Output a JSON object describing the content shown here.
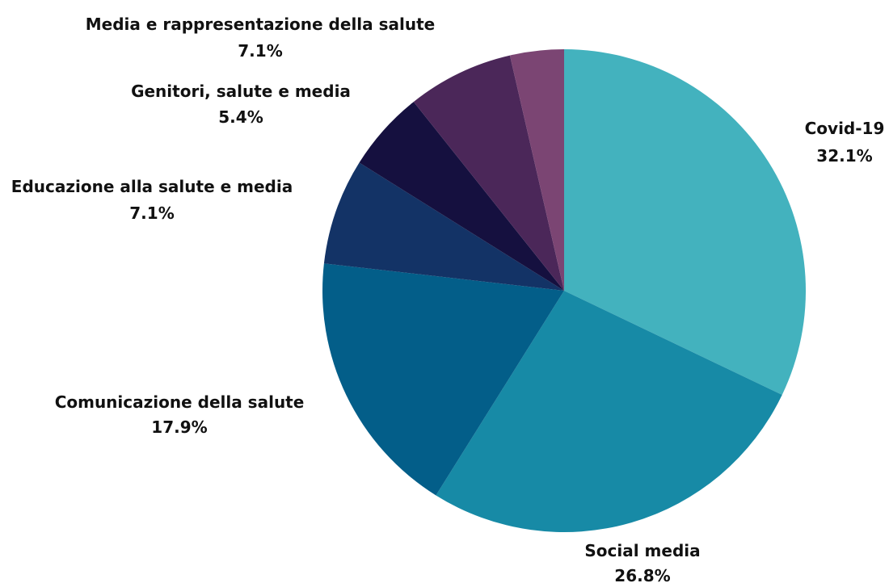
{
  "chart_data": {
    "type": "pie",
    "title": "",
    "start": "top",
    "direction": "clockwise",
    "slices": [
      {
        "label": "Covid-19",
        "value": 32.1,
        "value_label": "32.1%",
        "color": "#43b2be"
      },
      {
        "label": "Social media",
        "value": 26.8,
        "value_label": "26.8%",
        "color": "#178aa6"
      },
      {
        "label": "Comunicazione della salute",
        "value": 17.9,
        "value_label": "17.9%",
        "color": "#035e89"
      },
      {
        "label": "Educazione alla salute e media",
        "value": 7.1,
        "value_label": "7.1%",
        "color": "#133366"
      },
      {
        "label": "Genitori, salute e media",
        "value": 5.4,
        "value_label": "5.4%",
        "color": "#15103f"
      },
      {
        "label": "Media e rappresentazione della salute",
        "value": 7.1,
        "value_label": "7.1%",
        "color": "#4b2759"
      },
      {
        "label": "",
        "value": 3.6,
        "value_label": "",
        "color": "#7b4573"
      }
    ]
  }
}
